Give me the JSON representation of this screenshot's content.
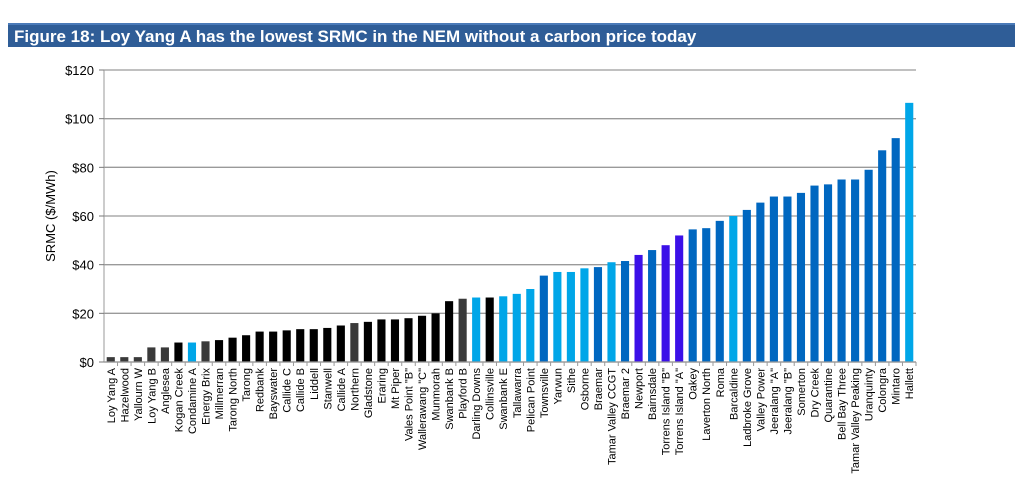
{
  "figure_title": "Figure 18: Loy Yang A has the lowest SRMC in the NEM without a carbon price today",
  "chart_data": {
    "type": "bar",
    "title": "Figure 18: Loy Yang A has the lowest SRMC in the NEM without a carbon price today",
    "xlabel": "",
    "ylabel": "SRMC ($/MWh)",
    "ylim": [
      0,
      120
    ],
    "yticks": [
      0,
      20,
      40,
      60,
      80,
      100,
      120
    ],
    "ytick_labels": [
      "$0",
      "$20",
      "$40",
      "$60",
      "$80",
      "$100",
      "$120"
    ],
    "grid": true,
    "legend": "none",
    "colors": {
      "brown_coal": "#3a3a3a",
      "black_coal": "#000000",
      "gas_light": "#00a6e8",
      "gas_dark": "#0067c0",
      "purple": "#3b10e8"
    },
    "categories": [
      "Loy Yang A",
      "Hazelwood",
      "Yallourn W",
      "Loy Yang B",
      "Anglesea",
      "Kogan Creek",
      "Condamine A",
      "Energy Brix",
      "Millmerran",
      "Tarong North",
      "Tarong",
      "Redbank",
      "Bayswater",
      "Callide C",
      "Callide B",
      "Liddell",
      "Stanwell",
      "Callide A",
      "Northern",
      "Gladstone",
      "Eraring",
      "Mt Piper",
      "Vales Point \"B\"",
      "Wallerawang \"C\"",
      "Munmorah",
      "Swanbank B",
      "Playford B",
      "Darling Downs",
      "Collinsville",
      "Swanbank E",
      "Tallawarra",
      "Pelican Point",
      "Townsville",
      "Yarwun",
      "Sithe",
      "Osborne",
      "Braemar",
      "Tamar Valley CCGT",
      "Braemar 2",
      "Newport",
      "Bairnsdale",
      "Torrens Island \"B\"",
      "Torrens Island \"A\"",
      "Oakey",
      "Laverton North",
      "Roma",
      "Barcaldine",
      "Ladbroke Grove",
      "Valley Power",
      "Jeeralang \"A\"",
      "Jeeralang \"B\"",
      "Somerton",
      "Dry Creek",
      "Quarantine",
      "Bell Bay Three",
      "Tamar Valley Peaking",
      "Uranquinty",
      "Colongra",
      "Mintaro",
      "Hallett"
    ],
    "values": [
      2,
      2,
      2,
      6,
      6,
      8,
      8,
      8.5,
      9,
      10,
      11,
      12.5,
      12.5,
      13,
      13.5,
      13.5,
      14,
      15,
      16,
      16.5,
      17.5,
      17.5,
      18,
      19,
      20,
      25,
      26,
      26.5,
      26.5,
      27,
      28,
      30,
      35.5,
      37,
      37,
      38.5,
      39,
      41,
      41.5,
      44,
      46,
      48,
      52,
      54.5,
      55,
      58,
      60,
      62.5,
      65.5,
      68,
      68,
      69.5,
      72.5,
      73,
      75,
      75,
      79,
      87,
      92,
      106.5
    ],
    "bar_colors": [
      "brown_coal",
      "brown_coal",
      "brown_coal",
      "brown_coal",
      "brown_coal",
      "black_coal",
      "gas_light",
      "brown_coal",
      "black_coal",
      "black_coal",
      "black_coal",
      "black_coal",
      "black_coal",
      "black_coal",
      "black_coal",
      "black_coal",
      "black_coal",
      "black_coal",
      "brown_coal",
      "black_coal",
      "black_coal",
      "black_coal",
      "black_coal",
      "black_coal",
      "black_coal",
      "black_coal",
      "brown_coal",
      "gas_light",
      "black_coal",
      "gas_light",
      "gas_light",
      "gas_light",
      "gas_dark",
      "gas_light",
      "gas_light",
      "gas_light",
      "gas_dark",
      "gas_light",
      "gas_dark",
      "purple",
      "gas_dark",
      "purple",
      "purple",
      "gas_dark",
      "gas_dark",
      "gas_dark",
      "gas_light",
      "gas_dark",
      "gas_dark",
      "gas_dark",
      "gas_dark",
      "gas_dark",
      "gas_dark",
      "gas_dark",
      "gas_dark",
      "gas_dark",
      "gas_dark",
      "gas_dark",
      "gas_dark",
      "gas_light"
    ]
  }
}
